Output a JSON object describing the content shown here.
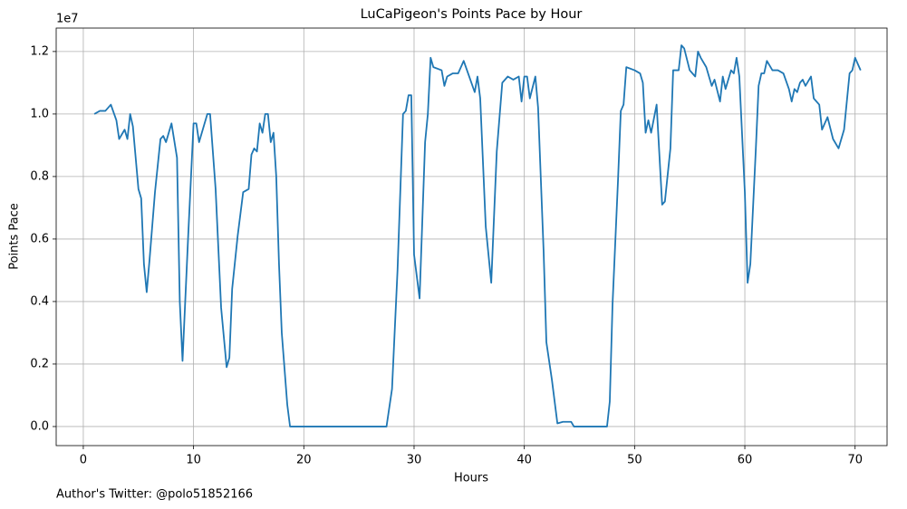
{
  "chart_data": {
    "type": "line",
    "title": "LuCaPigeon's Points Pace by Hour",
    "xlabel": "Hours",
    "ylabel": "Points Pace",
    "y_offset_label": "1e7",
    "annotation": "Author's Twitter: @polo51852166",
    "color": "#1f77b4",
    "grid": true,
    "xlim": [
      -2.46,
      72.9
    ],
    "ylim": [
      -0.061,
      1.275
    ],
    "xticks": [
      0,
      10,
      20,
      30,
      40,
      50,
      60,
      70
    ],
    "yticks": [
      {
        "value": 0,
        "label": "0.0"
      },
      {
        "value": 0.2,
        "label": "0.2"
      },
      {
        "value": 0.4,
        "label": "0.4"
      },
      {
        "value": 0.6,
        "label": "0.6"
      },
      {
        "value": 0.8,
        "label": "0.8"
      },
      {
        "value": 1.0,
        "label": "1.0"
      },
      {
        "value": 1.2,
        "label": "1.2"
      }
    ],
    "x": [
      1.0,
      1.5,
      2.0,
      2.5,
      3.0,
      3.25,
      3.75,
      4.0,
      4.25,
      4.5,
      5.0,
      5.25,
      5.5,
      5.75,
      6.0,
      6.5,
      7.0,
      7.25,
      7.5,
      8.0,
      8.5,
      8.75,
      9.0,
      9.5,
      10.0,
      10.25,
      10.5,
      11.0,
      11.25,
      11.5,
      12.0,
      12.5,
      13.0,
      13.25,
      13.5,
      14.0,
      14.5,
      15.0,
      15.25,
      15.5,
      15.75,
      16.0,
      16.25,
      16.5,
      16.75,
      17.0,
      17.25,
      17.5,
      17.75,
      18.0,
      18.5,
      18.75,
      19.0,
      20.0,
      21.0,
      22.0,
      23.0,
      24.0,
      25.0,
      26.0,
      27.0,
      27.5,
      28.0,
      28.5,
      29.0,
      29.25,
      29.5,
      29.75,
      30.0,
      30.5,
      30.75,
      31.0,
      31.25,
      31.5,
      31.75,
      32.5,
      32.75,
      33.0,
      33.5,
      34.0,
      34.5,
      35.0,
      35.5,
      35.75,
      36.0,
      36.5,
      37.0,
      37.5,
      38.0,
      38.5,
      39.0,
      39.5,
      39.75,
      40.0,
      40.25,
      40.5,
      41.0,
      41.25,
      41.75,
      42.0,
      42.5,
      43.0,
      43.5,
      44.0,
      44.25,
      44.5,
      45.0,
      46.0,
      47.0,
      47.5,
      47.75,
      48.0,
      48.5,
      48.75,
      49.0,
      49.25,
      50.0,
      50.5,
      50.75,
      51.0,
      51.25,
      51.5,
      52.0,
      52.5,
      52.75,
      53.25,
      53.5,
      54.0,
      54.25,
      54.5,
      55.0,
      55.5,
      55.75,
      56.0,
      56.5,
      57.0,
      57.25,
      57.75,
      58.0,
      58.25,
      58.75,
      59.0,
      59.25,
      59.5,
      60.0,
      60.25,
      60.5,
      61.0,
      61.25,
      61.5,
      61.75,
      62.0,
      62.5,
      63.0,
      63.5,
      64.0,
      64.25,
      64.5,
      64.75,
      65.0,
      65.25,
      65.5,
      66.0,
      66.25,
      66.75,
      67.0,
      67.5,
      68.0,
      68.5,
      69.0,
      69.5,
      69.75,
      70.0,
      70.5
    ],
    "values": [
      1.0,
      1.01,
      1.01,
      1.03,
      0.98,
      0.92,
      0.95,
      0.92,
      1.0,
      0.96,
      0.76,
      0.73,
      0.52,
      0.43,
      0.53,
      0.75,
      0.92,
      0.93,
      0.91,
      0.97,
      0.86,
      0.4,
      0.21,
      0.6,
      0.97,
      0.97,
      0.91,
      0.97,
      1.0,
      1.0,
      0.76,
      0.38,
      0.19,
      0.22,
      0.44,
      0.61,
      0.75,
      0.76,
      0.87,
      0.89,
      0.88,
      0.97,
      0.94,
      1.0,
      1.0,
      0.91,
      0.94,
      0.8,
      0.52,
      0.3,
      0.07,
      0.0,
      0.0,
      0.0,
      0.0,
      0.0,
      0.0,
      0.0,
      0.0,
      0.0,
      0.0,
      0.0,
      0.12,
      0.5,
      1.0,
      1.01,
      1.06,
      1.06,
      0.55,
      0.41,
      0.66,
      0.91,
      1.0,
      1.18,
      1.15,
      1.14,
      1.09,
      1.12,
      1.13,
      1.13,
      1.17,
      1.12,
      1.07,
      1.12,
      1.05,
      0.64,
      0.46,
      0.88,
      1.1,
      1.12,
      1.11,
      1.12,
      1.04,
      1.12,
      1.12,
      1.05,
      1.12,
      1.02,
      0.56,
      0.27,
      0.15,
      0.01,
      0.015,
      0.015,
      0.015,
      0.0,
      0.0,
      0.0,
      0.0,
      0.0,
      0.08,
      0.39,
      0.79,
      1.01,
      1.03,
      1.15,
      1.14,
      1.13,
      1.1,
      0.94,
      0.98,
      0.94,
      1.03,
      0.71,
      0.72,
      0.89,
      1.14,
      1.14,
      1.22,
      1.21,
      1.14,
      1.12,
      1.2,
      1.18,
      1.15,
      1.09,
      1.11,
      1.04,
      1.12,
      1.08,
      1.14,
      1.13,
      1.18,
      1.12,
      0.75,
      0.46,
      0.52,
      0.89,
      1.09,
      1.13,
      1.13,
      1.17,
      1.14,
      1.14,
      1.13,
      1.08,
      1.04,
      1.08,
      1.07,
      1.1,
      1.11,
      1.09,
      1.12,
      1.05,
      1.03,
      0.95,
      0.99,
      0.92,
      0.89,
      0.95,
      1.13,
      1.14,
      1.18,
      1.14
    ]
  }
}
